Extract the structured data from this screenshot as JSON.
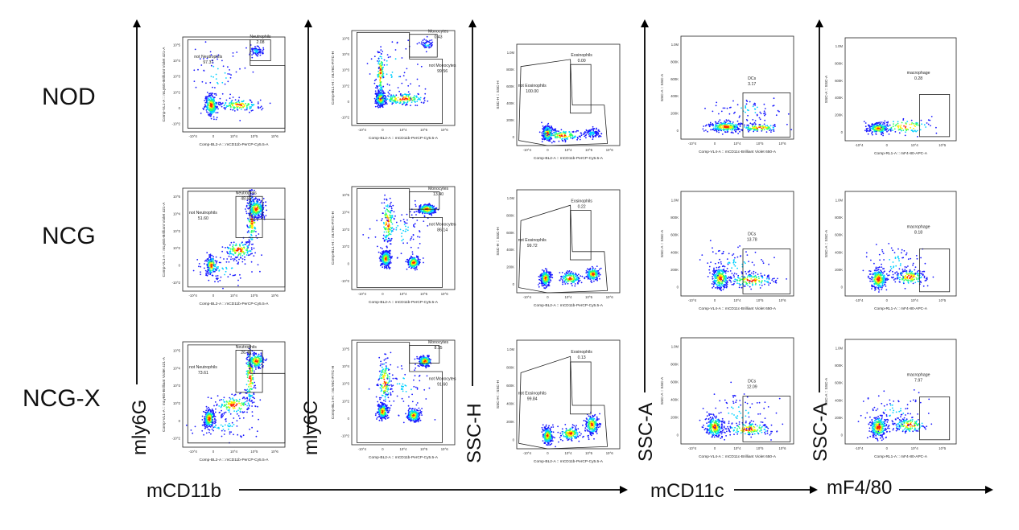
{
  "row_labels": [
    "NOD",
    "NCG",
    "NCG-X"
  ],
  "axis_labels": {
    "y1": "mly6G",
    "y2": "mly6C",
    "y3": "SSC-H",
    "y4": "SSC-A",
    "y5": "SSC-A",
    "x1": "mCD11b",
    "x2": "mCD11c",
    "x3": "mF4/80"
  },
  "colors": {
    "low": "#1a1aff",
    "mid": "#00d0ff",
    "mid2": "#33ff66",
    "high": "#ffee00",
    "peak": "#ff2200"
  },
  "columns": [
    {
      "id": "neutrophils",
      "x_axis": "Comp-BL2-A :: mCD11b-PerCP-Cy5.5-A",
      "y_axis": "Comp-VL1-A :: mLy6G-Brilliant Violet 421-A",
      "y_ticks": [
        "10^5",
        "10^4",
        "10^3",
        "10^2",
        "0",
        "-10^2"
      ],
      "x_ticks": [
        "-10^4",
        "0",
        "10^4",
        "10^5",
        "10^6"
      ],
      "gate_labels": [
        "not Neutrophils",
        "Neutrophils"
      ],
      "rows": [
        [
          "97.37",
          "2.08"
        ],
        [
          "51.60",
          "48.65"
        ],
        [
          "73.61",
          "26.46"
        ]
      ]
    },
    {
      "id": "monocytes",
      "x_axis": "Comp-BL2-A :: mCD11b-PerCP-Cy5.5-A",
      "y_axis": "Comp-BL1-H :: mLY6C-FITC-H",
      "y_ticks": [
        "10^5",
        "10^4",
        "10^3",
        "10^2",
        "0",
        "-10^2"
      ],
      "x_ticks": [
        "-10^4",
        "0",
        "10^4",
        "10^5",
        "10^6"
      ],
      "gate_labels": [
        "Monocytes",
        "not Monocytes"
      ],
      "rows": [
        [
          "0.43",
          "99.56"
        ],
        [
          "13.40",
          "86.14"
        ],
        [
          "8.15",
          "91.60"
        ]
      ]
    },
    {
      "id": "eosinophils",
      "x_axis": "Comp-BL2-A :: mCD11b-PerCP-Cy5.5-A",
      "y_axis": "SSC-H :: SSC-H",
      "y_ticks": [
        "1.0M",
        "800K",
        "600K",
        "400K",
        "200K",
        "0"
      ],
      "x_ticks": [
        "-10^4",
        "0",
        "10^4",
        "10^5",
        "10^6"
      ],
      "gate_labels": [
        "not Eosinophils",
        "Eosinophils"
      ],
      "rows": [
        [
          "100.00",
          "0.00"
        ],
        [
          "99.72",
          "0.22"
        ],
        [
          "99.84",
          "0.13"
        ]
      ]
    },
    {
      "id": "dcs",
      "x_axis": "Comp-VL4-A :: mCD11c-Brilliant Violet 650-A",
      "y_axis": "SSC-A :: SSC-A",
      "y_ticks": [
        "1.0M",
        "800K",
        "600K",
        "400K",
        "200K",
        "0"
      ],
      "x_ticks": [
        "-10^4",
        "0",
        "10^4",
        "10^5",
        "10^6"
      ],
      "gate_labels": [
        "DCs"
      ],
      "rows": [
        [
          "3.17"
        ],
        [
          "13.78"
        ],
        [
          "12.09"
        ]
      ]
    },
    {
      "id": "macrophage",
      "x_axis": "Comp-RL1-A :: mF4-80-APC-A",
      "y_axis": "SSC-A :: SSC-A",
      "y_ticks": [
        "1.0M",
        "800K",
        "600K",
        "400K",
        "200K",
        "0"
      ],
      "x_ticks": [
        "-10^4",
        "0",
        "10^4",
        "10^5"
      ],
      "gate_labels": [
        "macrophage"
      ],
      "rows": [
        [
          "0.28"
        ],
        [
          "8.18"
        ],
        [
          "7.97"
        ]
      ]
    }
  ]
}
